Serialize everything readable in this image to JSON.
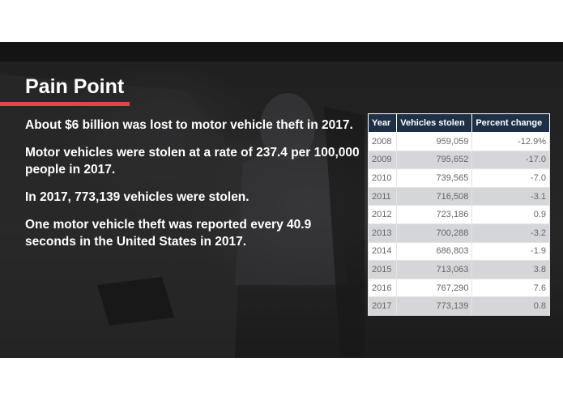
{
  "slide": {
    "title": "Pain Point",
    "facts": [
      "About $6 billion was lost to motor vehicle theft in 2017.",
      "Motor vehicles were stolen at a rate of 237.4 per 100,000 people in 2017.",
      "In 2017, 773,139 vehicles were stolen.",
      "One motor vehicle theft was reported every 40.9 seconds in the United States in 2017."
    ]
  },
  "table": {
    "headers": [
      "Year",
      "Vehicles stolen",
      "Percent change"
    ],
    "rows": [
      [
        "2008",
        "959,059",
        "-12.9%"
      ],
      [
        "2009",
        "795,652",
        "-17.0"
      ],
      [
        "2010",
        "739,565",
        "-7.0"
      ],
      [
        "2011",
        "716,508",
        "-3.1"
      ],
      [
        "2012",
        "723,186",
        "0.9"
      ],
      [
        "2013",
        "700,288",
        "-3.2"
      ],
      [
        "2014",
        "686,803",
        "-1.9"
      ],
      [
        "2015",
        "713,063",
        "3.8"
      ],
      [
        "2016",
        "767,290",
        "7.6"
      ],
      [
        "2017",
        "773,139",
        "0.8"
      ]
    ]
  },
  "colors": {
    "accent": "#e0474c",
    "table_header": "#1e3048",
    "background": "#1f1f1f"
  }
}
